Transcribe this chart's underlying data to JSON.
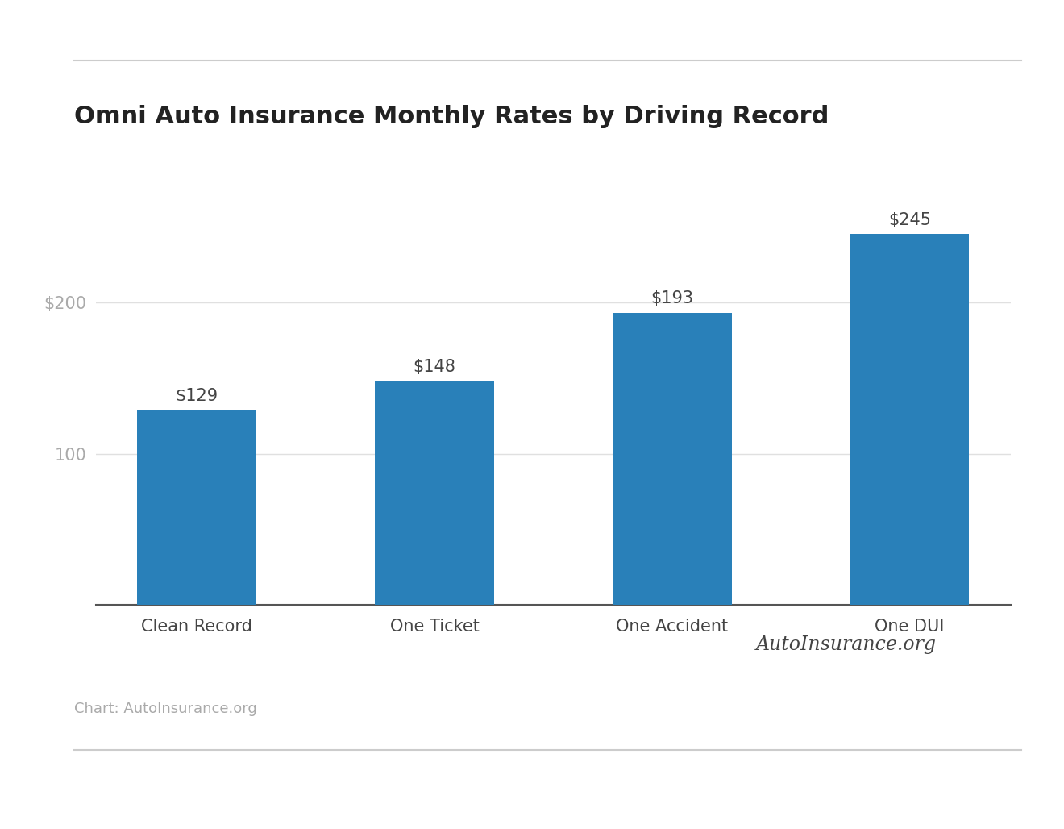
{
  "title": "Omni Auto Insurance Monthly Rates by Driving Record",
  "categories": [
    "Clean Record",
    "One Ticket",
    "One Accident",
    "One DUI"
  ],
  "values": [
    129,
    148,
    193,
    245
  ],
  "bar_labels": [
    "$129",
    "$148",
    "$193",
    "$245"
  ],
  "bar_color": "#2980b9",
  "background_color": "#ffffff",
  "yticks": [
    0,
    100,
    200
  ],
  "ytick_labels": [
    "",
    "100",
    "$200"
  ],
  "ylim": [
    0,
    290
  ],
  "title_fontsize": 22,
  "tick_fontsize": 15,
  "label_fontsize": 15,
  "bar_label_fontsize": 15,
  "footer_text": "Chart: AutoInsurance.org",
  "footer_fontsize": 13,
  "line_color": "#cccccc",
  "axis_line_color": "#555555",
  "grid_color": "#e0e0e0",
  "logo_text": "AutoInsurance.org",
  "logo_fontsize": 17
}
